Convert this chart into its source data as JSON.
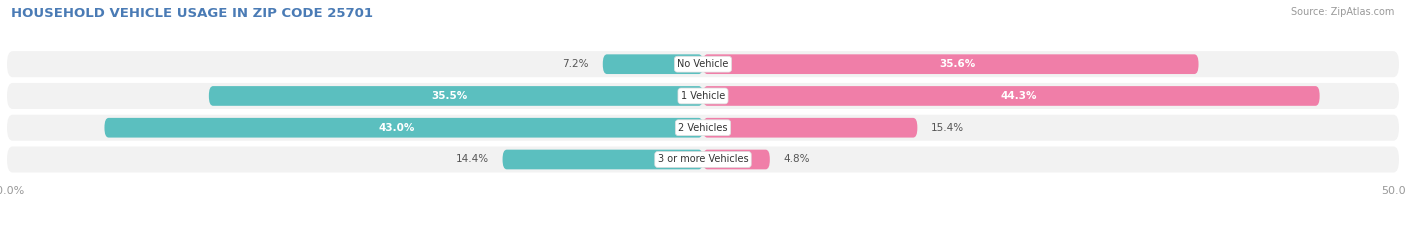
{
  "title": "HOUSEHOLD VEHICLE USAGE IN ZIP CODE 25701",
  "source": "Source: ZipAtlas.com",
  "categories": [
    "No Vehicle",
    "1 Vehicle",
    "2 Vehicles",
    "3 or more Vehicles"
  ],
  "owner_values": [
    7.2,
    35.5,
    43.0,
    14.4
  ],
  "renter_values": [
    35.6,
    44.3,
    15.4,
    4.8
  ],
  "owner_color": "#5BBFBF",
  "renter_color": "#F07EA8",
  "background_color": "#FFFFFF",
  "row_bg_color": "#F2F2F2",
  "title_color": "#4A7BB5",
  "axis_label_color": "#999999",
  "text_color_dark": "#555555",
  "text_color_white": "#FFFFFF",
  "xlim": 50.0,
  "figsize": [
    14.06,
    2.33
  ],
  "dpi": 100
}
